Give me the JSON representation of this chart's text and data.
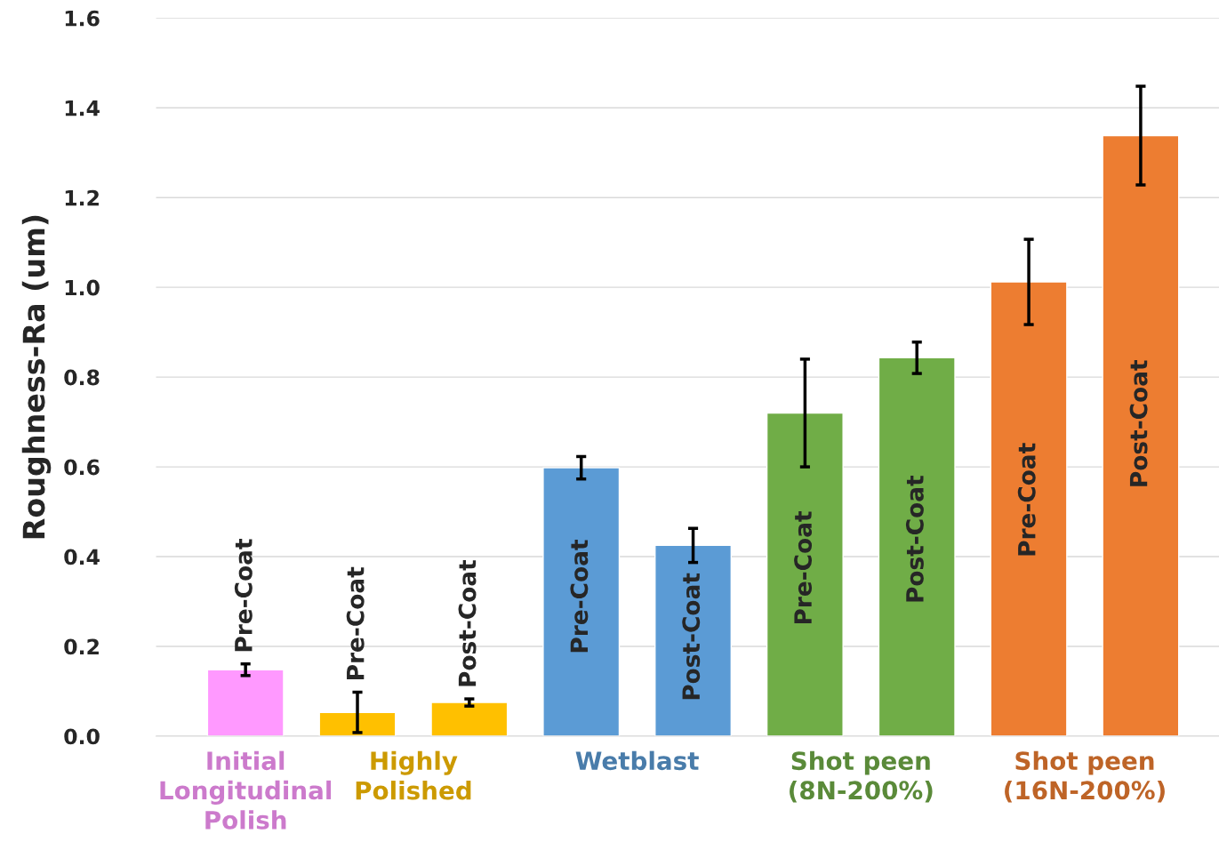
{
  "chart_data": {
    "type": "bar",
    "ylabel": "Roughness-Ra (um)",
    "categories": [
      "Initial\nLongitudinal\nPolish",
      "Highly\nPolished",
      "Wetblast",
      "Shot peen\n(8N-200%)",
      "Shot peen\n(16N-200%)"
    ],
    "series": [
      {
        "name": "Pre-Coat",
        "values": [
          0.148,
          0.053,
          0.598,
          0.72,
          1.012
        ],
        "errors": [
          0.013,
          0.045,
          0.025,
          0.12,
          0.095
        ],
        "colors": [
          "#ff99ff",
          "#ffc000",
          "#5b9bd5",
          "#70ad47",
          "#ed7d31"
        ]
      },
      {
        "name": "Post-Coat",
        "values": [
          null,
          0.075,
          0.425,
          0.843,
          1.338
        ],
        "errors": [
          null,
          0.008,
          0.038,
          0.035,
          0.11
        ],
        "colors": [
          "#ff99ff",
          "#ffc000",
          "#5b9bd5",
          "#70ad47",
          "#ed7d31"
        ]
      }
    ],
    "ylim": [
      0,
      1.6
    ],
    "yticks": [
      {
        "value": 0,
        "label": "0.0"
      },
      0.2,
      0.4,
      0.6,
      0.8,
      {
        "value": 1,
        "label": "1.0"
      },
      1.2,
      1.4,
      1.6
    ],
    "grid": "y"
  }
}
